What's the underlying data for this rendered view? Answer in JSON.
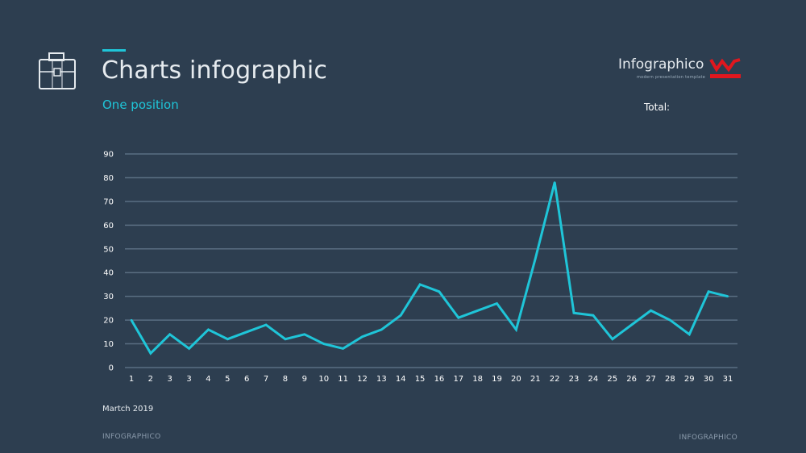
{
  "header": {
    "title": "Charts infographic",
    "subtitle": "One position",
    "total_label": "Total:"
  },
  "brand": {
    "name": "Infographico",
    "tagline": "modern presentation template",
    "logo_icon": "red-crown-logo-icon",
    "logo_color": "#e1171e"
  },
  "icons": {
    "left_icon": "briefcase-icon"
  },
  "colors": {
    "background": "#2d3e50",
    "accent": "#1fc5d8",
    "grid": "#5a6e82"
  },
  "date_label": "Martch 2019",
  "footer": {
    "left": "INFOGRAPHICO",
    "right": "INFOGRAPHICO"
  },
  "chart_data": {
    "type": "line",
    "categories": [
      "1",
      "2",
      "3",
      "3",
      "4",
      "5",
      "6",
      "7",
      "8",
      "9",
      "10",
      "11",
      "12",
      "13",
      "14",
      "15",
      "16",
      "17",
      "18",
      "19",
      "20",
      "21",
      "22",
      "23",
      "24",
      "25",
      "26",
      "27",
      "28",
      "29",
      "30",
      "31"
    ],
    "series": [
      {
        "values": [
          20,
          6,
          14,
          8,
          16,
          12,
          15,
          18,
          12,
          14,
          10,
          8,
          13,
          16,
          22,
          35,
          32,
          21,
          24,
          27,
          16,
          46,
          78,
          23,
          22,
          12,
          18,
          24,
          20,
          14,
          32,
          30
        ]
      }
    ],
    "ylim": [
      0,
      90
    ],
    "yticks": [
      0,
      10,
      20,
      30,
      40,
      50,
      60,
      70,
      80,
      90
    ],
    "grid": true,
    "legend": "none",
    "title": "",
    "xlabel": "",
    "ylabel": ""
  }
}
